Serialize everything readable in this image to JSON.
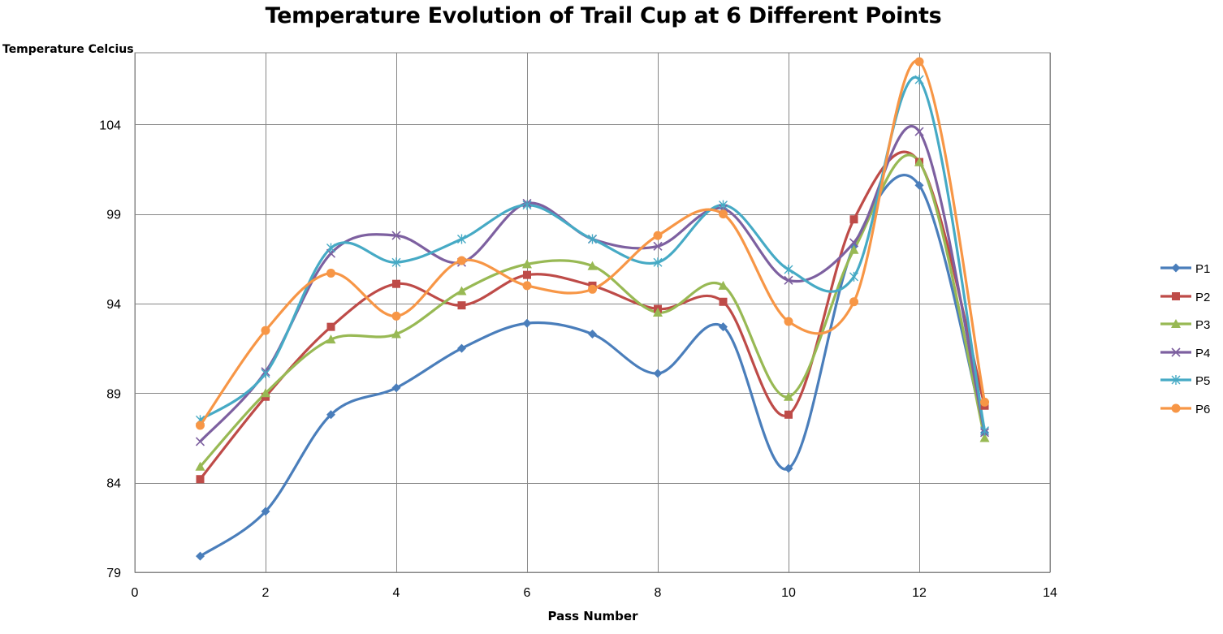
{
  "chart_data": {
    "type": "line",
    "title": "Temperature Evolution of Trail Cup at 6 Different Points",
    "xlabel": "Pass Number",
    "ylabel": "Temperature Celcius",
    "xlim": [
      0,
      14
    ],
    "ylim": [
      79,
      108
    ],
    "x_ticks": [
      0,
      2,
      4,
      6,
      8,
      10,
      12,
      14
    ],
    "y_ticks": [
      79,
      84,
      89,
      94,
      99,
      104
    ],
    "grid": true,
    "smoothed": true,
    "legend_position": "right",
    "x": [
      1,
      2,
      3,
      4,
      5,
      6,
      7,
      8,
      9,
      10,
      11,
      12,
      13
    ],
    "series": [
      {
        "name": "P1",
        "color": "#4a7ebb",
        "marker": "diamond",
        "values": [
          79.9,
          82.4,
          87.8,
          89.3,
          91.5,
          92.9,
          92.3,
          90.1,
          92.7,
          84.8,
          97.2,
          100.6,
          86.8
        ]
      },
      {
        "name": "P2",
        "color": "#be4b48",
        "marker": "square",
        "values": [
          84.2,
          88.8,
          92.7,
          95.1,
          93.9,
          95.6,
          95.0,
          93.7,
          94.1,
          87.8,
          98.7,
          101.9,
          88.3
        ]
      },
      {
        "name": "P3",
        "color": "#98b954",
        "marker": "triangle",
        "values": [
          84.9,
          89.0,
          92.0,
          92.3,
          94.7,
          96.2,
          96.1,
          93.5,
          95.0,
          88.8,
          97.0,
          101.9,
          86.5
        ]
      },
      {
        "name": "P4",
        "color": "#7d60a0",
        "marker": "x",
        "values": [
          86.3,
          90.2,
          96.8,
          97.8,
          96.3,
          99.6,
          97.6,
          97.2,
          99.3,
          95.3,
          97.4,
          103.6,
          86.8
        ]
      },
      {
        "name": "P5",
        "color": "#46aac5",
        "marker": "asterisk",
        "values": [
          87.5,
          90.1,
          97.1,
          96.3,
          97.6,
          99.5,
          97.6,
          96.3,
          99.5,
          95.9,
          95.5,
          106.5,
          86.9
        ]
      },
      {
        "name": "P6",
        "color": "#f79646",
        "marker": "circle",
        "values": [
          87.2,
          92.5,
          95.7,
          93.3,
          96.4,
          95.0,
          94.8,
          97.8,
          99.0,
          93.0,
          94.1,
          107.5,
          88.5
        ]
      }
    ]
  }
}
